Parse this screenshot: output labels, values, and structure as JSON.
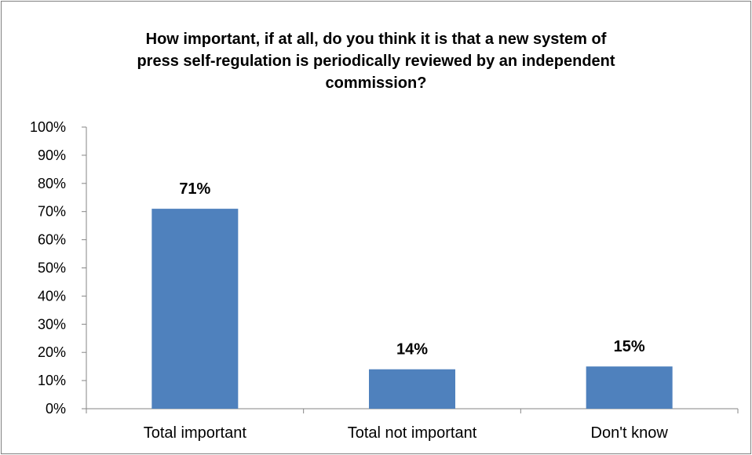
{
  "chart_data": {
    "type": "bar",
    "title_lines": [
      "How important, if at all, do you think it is that a new system of",
      "press self-regulation is periodically reviewed by an independent",
      "commission?"
    ],
    "categories": [
      "Total important",
      "Total not important",
      "Don't know"
    ],
    "values": [
      71,
      14,
      15
    ],
    "data_labels": [
      "71%",
      "14%",
      "15%"
    ],
    "ylim": [
      0,
      100
    ],
    "yticks": [
      "0%",
      "10%",
      "20%",
      "30%",
      "40%",
      "50%",
      "60%",
      "70%",
      "80%",
      "90%",
      "100%"
    ],
    "bar_color": "#4f81bd",
    "grid": false,
    "legend": "none"
  }
}
